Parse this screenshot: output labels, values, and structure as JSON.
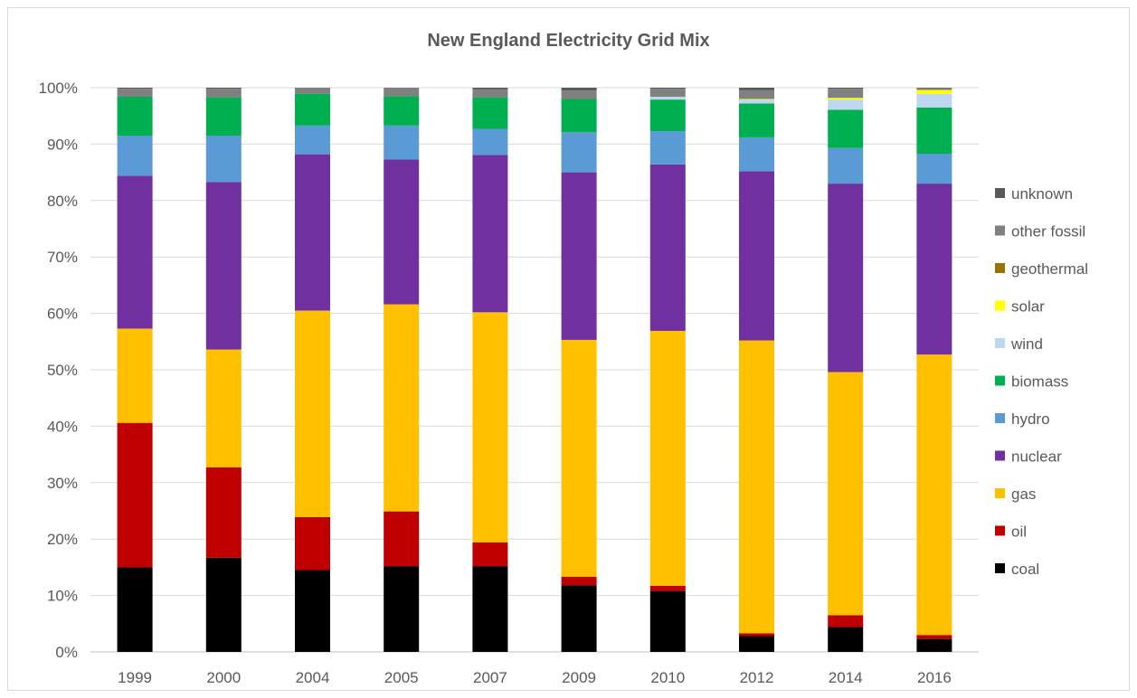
{
  "chart_data": {
    "type": "bar",
    "stacked": true,
    "title": "New England Electricity Grid Mix",
    "xlabel": "",
    "ylabel": "",
    "ylim": [
      0,
      100
    ],
    "y_ticks": [
      "0%",
      "10%",
      "20%",
      "30%",
      "40%",
      "50%",
      "60%",
      "70%",
      "80%",
      "90%",
      "100%"
    ],
    "grid": "horizontal",
    "legend_position": "right",
    "categories": [
      "1999",
      "2000",
      "2004",
      "2005",
      "2007",
      "2009",
      "2010",
      "2012",
      "2014",
      "2016"
    ],
    "series": [
      {
        "name": "coal",
        "color": "#000000",
        "values": [
          15.0,
          16.7,
          14.5,
          15.2,
          15.2,
          11.8,
          10.8,
          2.8,
          4.4,
          2.3
        ]
      },
      {
        "name": "oil",
        "color": "#c00000",
        "values": [
          25.6,
          16.0,
          9.4,
          9.7,
          4.2,
          1.5,
          0.9,
          0.5,
          2.1,
          0.7
        ]
      },
      {
        "name": "gas",
        "color": "#ffc000",
        "values": [
          16.7,
          20.9,
          36.6,
          36.7,
          40.8,
          42.0,
          45.2,
          51.9,
          43.1,
          49.7
        ]
      },
      {
        "name": "nuclear",
        "color": "#7030a0",
        "values": [
          27.1,
          29.7,
          27.7,
          25.7,
          27.9,
          29.7,
          29.5,
          30.0,
          33.4,
          30.3
        ]
      },
      {
        "name": "hydro",
        "color": "#5b9bd5",
        "values": [
          7.1,
          8.2,
          5.1,
          6.0,
          4.6,
          7.1,
          5.9,
          6.0,
          6.3,
          5.3
        ]
      },
      {
        "name": "biomass",
        "color": "#00b050",
        "values": [
          6.9,
          6.8,
          5.6,
          5.2,
          5.6,
          5.9,
          5.6,
          6.0,
          6.8,
          8.2
        ]
      },
      {
        "name": "wind",
        "color": "#bdd7ee",
        "values": [
          0.0,
          0.0,
          0.0,
          0.0,
          0.0,
          0.0,
          0.5,
          0.7,
          1.8,
          2.4
        ]
      },
      {
        "name": "solar",
        "color": "#ffff00",
        "values": [
          0.0,
          0.0,
          0.0,
          0.0,
          0.0,
          0.0,
          0.0,
          0.1,
          0.3,
          0.7
        ]
      },
      {
        "name": "geothermal",
        "color": "#997300",
        "values": [
          0.0,
          0.0,
          0.0,
          0.0,
          0.0,
          0.0,
          0.0,
          0.0,
          0.0,
          0.0
        ]
      },
      {
        "name": "other fossil",
        "color": "#808080",
        "values": [
          1.4,
          1.5,
          1.1,
          1.5,
          1.4,
          1.5,
          1.4,
          1.6,
          1.6,
          0.3
        ]
      },
      {
        "name": "unknown",
        "color": "#595959",
        "values": [
          0.2,
          0.2,
          0.0,
          0.0,
          0.3,
          0.5,
          0.2,
          0.4,
          0.2,
          0.1
        ]
      }
    ]
  }
}
